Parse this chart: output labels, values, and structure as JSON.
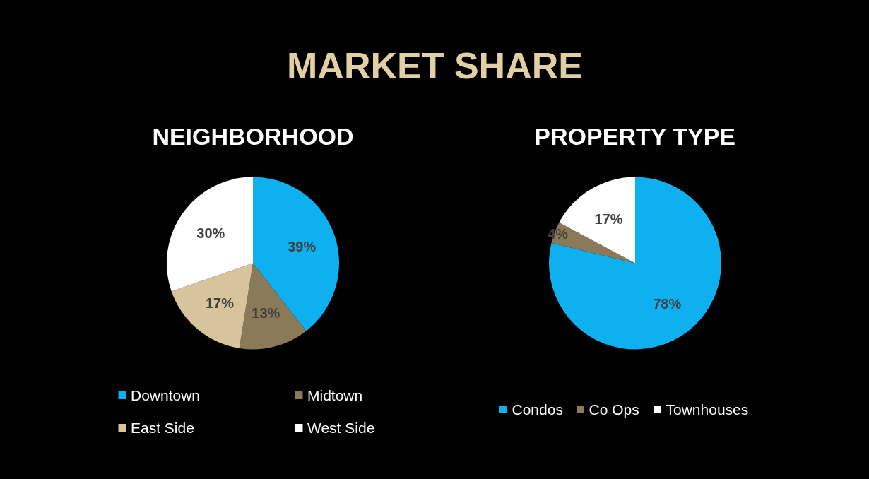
{
  "chart_data": [
    {
      "type": "pie",
      "title": "NEIGHBORHOOD",
      "annotations": [
        "MARKET SHARE"
      ],
      "categories": [
        "Downtown",
        "Midtown",
        "East Side",
        "West Side"
      ],
      "values": [
        39,
        13,
        17,
        30
      ],
      "colors": [
        "#0fb0ef",
        "#8b7a57",
        "#d8c49c",
        "#ffffff"
      ],
      "value_labels": [
        "39%",
        "13%",
        "17%",
        "30%"
      ],
      "legend": "bottom"
    },
    {
      "type": "pie",
      "title": "PROPERTY TYPE",
      "categories": [
        "Condos",
        "Co Ops",
        "Townhouses"
      ],
      "values": [
        78,
        4,
        17
      ],
      "colors": [
        "#0fb0ef",
        "#8b7a57",
        "#ffffff"
      ],
      "value_labels": [
        "78%",
        "4%",
        "17%"
      ],
      "legend": "bottom"
    }
  ]
}
